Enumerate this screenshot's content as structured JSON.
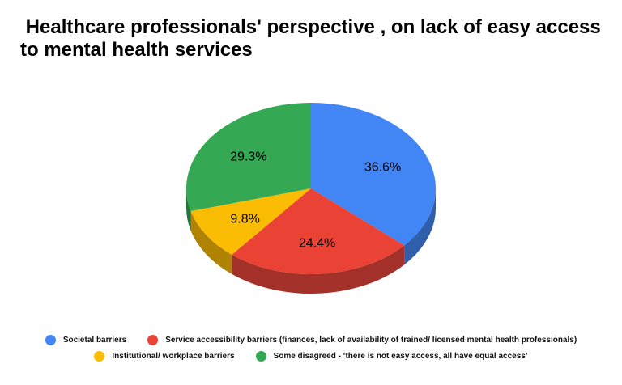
{
  "title": " Healthcare professionals' perspective , on lack of easy access to mental health services",
  "chart_data": {
    "type": "pie",
    "style": "3d",
    "legend_position": "bottom",
    "slices": [
      {
        "label": "Societal barriers",
        "value": 36.6,
        "value_label": "36.6%",
        "color": "#4285F4",
        "side_color": "#2F5EAB"
      },
      {
        "label": "Service accessibility barriers (finances, lack of availability of trained/ licensed mental health professionals)",
        "value": 24.4,
        "value_label": "24.4%",
        "color": "#EA4335",
        "side_color": "#A4302A"
      },
      {
        "label": "Institutional/ workplace barriers",
        "value": 9.8,
        "value_label": "9.8%",
        "color": "#FBBC04",
        "side_color": "#B08305"
      },
      {
        "label": "Some disagreed - ‘there is not easy access, all have equal access’",
        "value": 29.3,
        "value_label": "29.3%",
        "color": "#34A853",
        "side_color": "#247539"
      }
    ]
  }
}
